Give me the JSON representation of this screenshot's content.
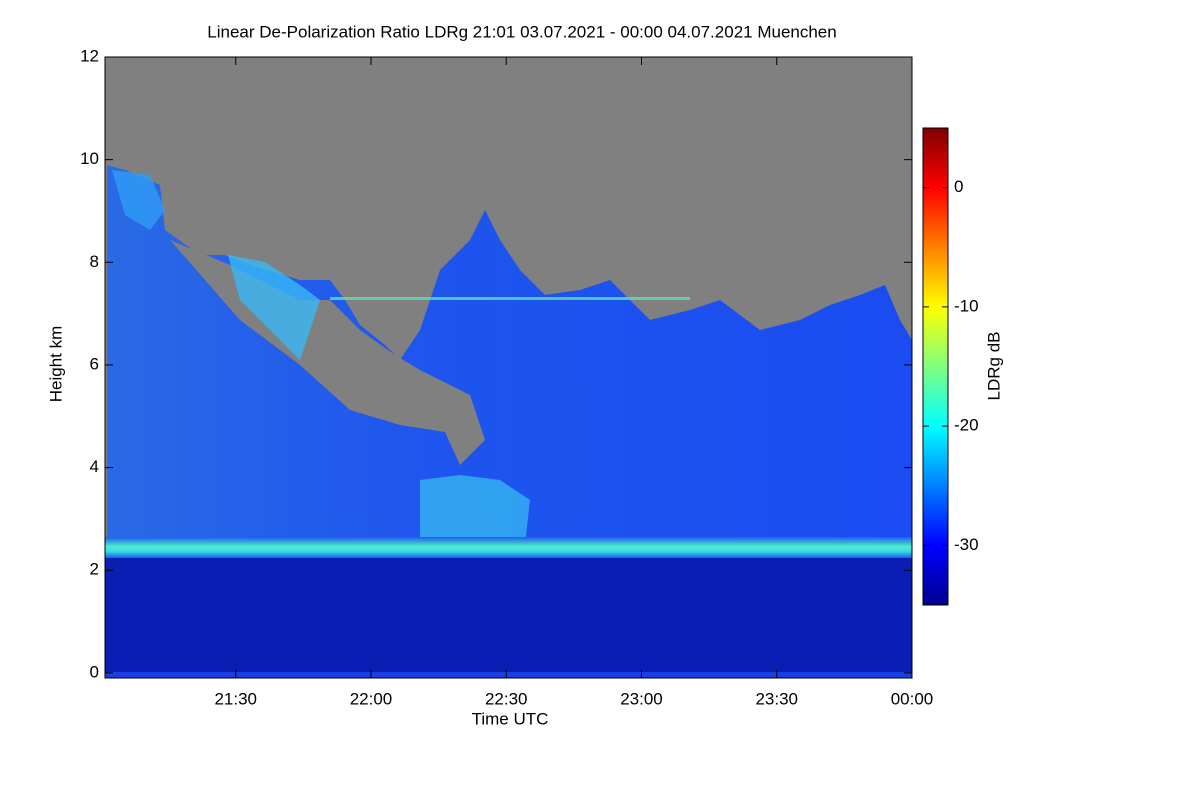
{
  "chart_data": {
    "type": "heatmap",
    "title": "Linear De-Polarization Ratio LDRg   21:01 03.07.2021 - 00:00 04.07.2021 Muenchen",
    "x_label": "Time UTC",
    "y_label": "Height km",
    "xlim": [
      21.0167,
      24
    ],
    "xticks": [
      {
        "value": 21.5,
        "label": "21:30"
      },
      {
        "value": 22,
        "label": "22:00"
      },
      {
        "value": 22.5,
        "label": "22:30"
      },
      {
        "value": 23,
        "label": "23:00"
      },
      {
        "value": 23.5,
        "label": "23:30"
      },
      {
        "value": 24,
        "label": "00:00"
      }
    ],
    "ylim": [
      -0.1,
      12
    ],
    "yticks": [
      0,
      2,
      4,
      6,
      8,
      10,
      12
    ],
    "colorbar": {
      "label": "LDRg dB",
      "zlim": [
        -35,
        5
      ],
      "ticks": [
        0,
        -10,
        -20,
        -30
      ],
      "colormap": [
        "#00008f",
        "#0000ff",
        "#0080ff",
        "#00ffff",
        "#80ff80",
        "#ffff00",
        "#ff8000",
        "#ff0000",
        "#800000"
      ]
    },
    "no_signal_color": "#808080"
  }
}
